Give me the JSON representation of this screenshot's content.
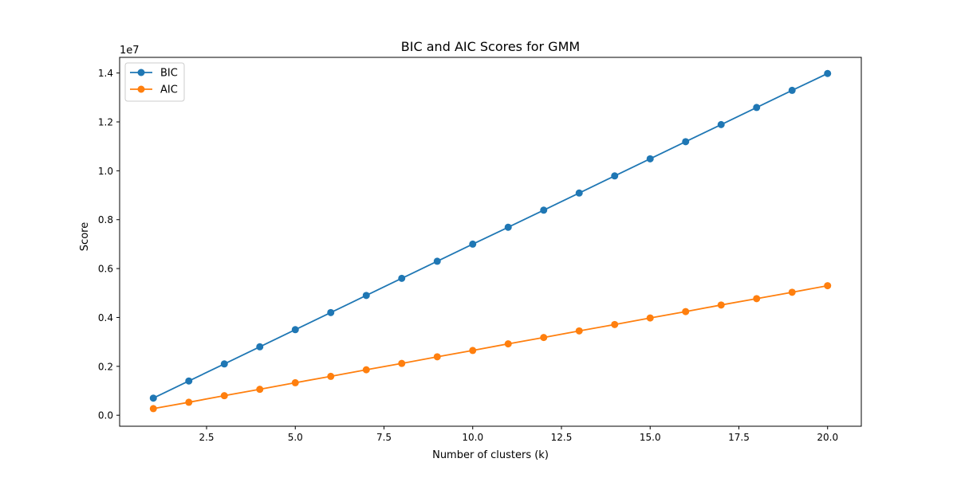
{
  "chart_data": {
    "type": "line",
    "title": "BIC and AIC Scores for GMM",
    "xlabel": "Number of clusters (k)",
    "ylabel": "Score",
    "y_offset_label": "1e7",
    "xlim": [
      0.05,
      20.95
    ],
    "ylim": [
      -0.045,
      1.464
    ],
    "x_ticks": [
      2.5,
      5.0,
      7.5,
      10.0,
      12.5,
      15.0,
      17.5,
      20.0
    ],
    "x_tick_labels": [
      "2.5",
      "5.0",
      "7.5",
      "10.0",
      "12.5",
      "15.0",
      "17.5",
      "20.0"
    ],
    "y_ticks": [
      0.0,
      0.2,
      0.4,
      0.6,
      0.8,
      1.0,
      1.2,
      1.4
    ],
    "y_tick_labels": [
      "0.0",
      "0.2",
      "0.4",
      "0.6",
      "0.8",
      "1.0",
      "1.2",
      "1.4"
    ],
    "grid": false,
    "legend_position": "top-left",
    "x": [
      1,
      2,
      3,
      4,
      5,
      6,
      7,
      8,
      9,
      10,
      11,
      12,
      13,
      14,
      15,
      16,
      17,
      18,
      19,
      20
    ],
    "series": [
      {
        "name": "BIC",
        "color": "#1f77b4",
        "marker": "circle",
        "values": [
          0.07,
          0.14,
          0.21,
          0.28,
          0.35,
          0.42,
          0.49,
          0.56,
          0.63,
          0.7,
          0.769,
          0.839,
          0.909,
          0.979,
          1.049,
          1.119,
          1.189,
          1.259,
          1.329,
          1.398
        ]
      },
      {
        "name": "AIC",
        "color": "#ff7f0e",
        "marker": "circle",
        "values": [
          0.027,
          0.053,
          0.08,
          0.106,
          0.133,
          0.159,
          0.186,
          0.212,
          0.239,
          0.265,
          0.292,
          0.318,
          0.345,
          0.371,
          0.398,
          0.424,
          0.451,
          0.477,
          0.503,
          0.53
        ]
      }
    ]
  }
}
